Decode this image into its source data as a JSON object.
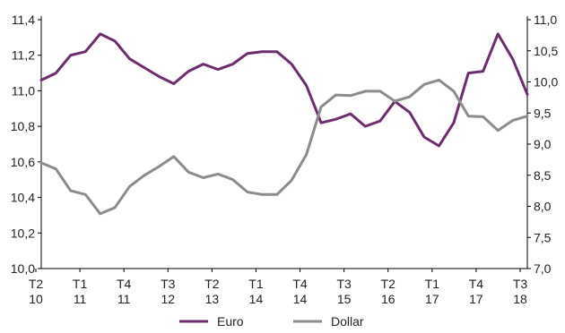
{
  "chart_data": {
    "type": "line",
    "x_ticks": [
      [
        "T2",
        "10"
      ],
      [
        "T1",
        "11"
      ],
      [
        "T4",
        "11"
      ],
      [
        "T3",
        "12"
      ],
      [
        "T2",
        "13"
      ],
      [
        "T1",
        "14"
      ],
      [
        "T4",
        "14"
      ],
      [
        "T3",
        "15"
      ],
      [
        "T2",
        "16"
      ],
      [
        "T1",
        "17"
      ],
      [
        "T4",
        "17"
      ],
      [
        "T3",
        "18"
      ]
    ],
    "y_left": {
      "ticks": [
        "10,0",
        "10,2",
        "10,4",
        "10,6",
        "10,8",
        "11,0",
        "11,2",
        "11,4"
      ],
      "ylim": [
        10.0,
        11.4
      ]
    },
    "y_right": {
      "ticks": [
        "7,0",
        "7,5",
        "8,0",
        "8,5",
        "9,0",
        "9,5",
        "10,0",
        "10,5",
        "11,0"
      ],
      "ylim": [
        7.0,
        11.0
      ]
    },
    "series": [
      {
        "name": "Euro",
        "axis": "left",
        "color": "#6b2d6b",
        "values": [
          11.06,
          11.1,
          11.2,
          11.22,
          11.32,
          11.28,
          11.18,
          11.13,
          11.08,
          11.04,
          11.11,
          11.15,
          11.12,
          11.15,
          11.21,
          11.22,
          11.22,
          11.15,
          11.03,
          10.82,
          10.84,
          10.87,
          10.8,
          10.83,
          10.94,
          10.88,
          10.74,
          10.69,
          10.82,
          11.1,
          11.11,
          11.32,
          11.18,
          10.98
        ]
      },
      {
        "name": "Dollar",
        "axis": "right",
        "color": "#8c8c8c",
        "values": [
          8.7,
          8.6,
          8.25,
          8.19,
          7.88,
          7.98,
          8.32,
          8.5,
          8.64,
          8.8,
          8.55,
          8.46,
          8.52,
          8.43,
          8.23,
          8.19,
          8.19,
          8.42,
          8.83,
          9.6,
          9.79,
          9.78,
          9.85,
          9.85,
          9.69,
          9.76,
          9.96,
          10.03,
          9.85,
          9.45,
          9.44,
          9.22,
          9.38,
          9.45
        ]
      }
    ],
    "legend": {
      "position": "bottom",
      "entries": [
        "Euro",
        "Dollar"
      ]
    },
    "grid": false
  }
}
